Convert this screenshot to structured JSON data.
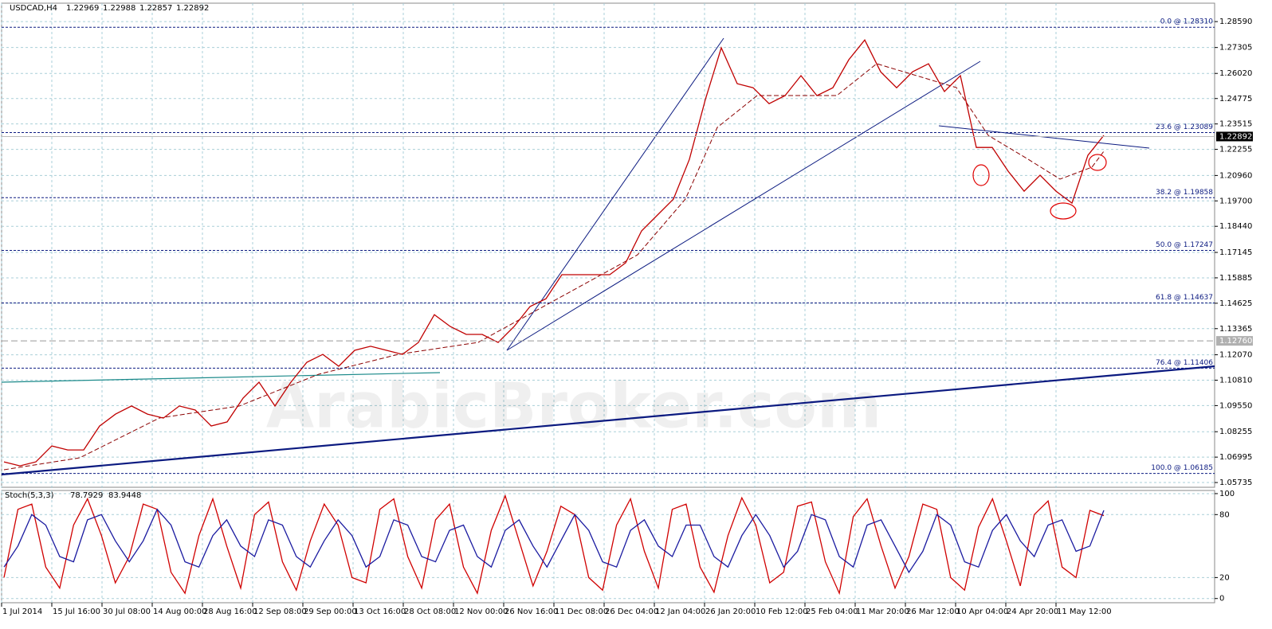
{
  "chart_data": [
    {
      "type": "line",
      "title": "USDCAD,H4",
      "quote": [
        1.22969,
        1.22988,
        1.22857,
        1.22892
      ],
      "watermark": "ArabicBroker.com",
      "color": "#c00000",
      "values": [
        1.0676,
        1.0656,
        1.0676,
        1.0755,
        1.0735,
        1.0735,
        1.0854,
        1.0913,
        1.0953,
        1.0913,
        1.0893,
        1.0953,
        1.0933,
        1.0854,
        1.0874,
        1.0992,
        1.1071,
        1.0953,
        1.1071,
        1.117,
        1.1209,
        1.115,
        1.1229,
        1.1249,
        1.1229,
        1.1209,
        1.1268,
        1.1406,
        1.1347,
        1.1308,
        1.1308,
        1.1268,
        1.1347,
        1.1446,
        1.1485,
        1.1604,
        1.1604,
        1.1604,
        1.1604,
        1.1663,
        1.1821,
        1.19,
        1.1979,
        1.2176,
        1.2472,
        1.2729,
        1.2551,
        1.2531,
        1.2452,
        1.2492,
        1.2591,
        1.2492,
        1.2531,
        1.267,
        1.2768,
        1.261,
        1.2531,
        1.261,
        1.265,
        1.2512,
        1.2591,
        1.2235,
        1.2235,
        1.2117,
        1.2018,
        1.2097,
        1.2018,
        1.1959,
        1.2196,
        1.2295
      ],
      "date_labels": [
        "1 Jul 2014",
        "15 Jul 16:00",
        "30 Jul 08:00",
        "14 Aug 00:00",
        "28 Aug 16:00",
        "12 Sep 08:00",
        "29 Sep 00:00",
        "13 Oct 16:00",
        "28 Oct 08:00",
        "12 Nov 00:00",
        "26 Nov 16:00",
        "11 Dec 08:00",
        "26 Dec 04:00",
        "12 Jan 04:00",
        "26 Jan 20:00",
        "10 Feb 12:00",
        "25 Feb 04:00",
        "11 Mar 20:00",
        "26 Mar 12:00",
        "10 Apr 04:00",
        "24 Apr 20:00",
        "11 May 12:00"
      ],
      "ylim": [
        1.055,
        1.2895
      ],
      "yticks": [
        {
          "value": 1.2859,
          "label": "1.28590"
        },
        1.27305,
        {
          "value": 1.2602,
          "label": "1.26020"
        },
        1.24775,
        1.23515,
        1.22255,
        {
          "value": 1.2096,
          "label": "1.20960"
        },
        {
          "value": 1.197,
          "label": "1.19700"
        },
        {
          "value": 1.1844,
          "label": "1.18440"
        },
        1.17145,
        1.15885,
        1.14625,
        1.13365,
        {
          "value": 1.1207,
          "label": "1.12070"
        },
        {
          "value": 1.1081,
          "label": "1.10810"
        },
        {
          "value": 1.0955,
          "label": "1.09550"
        },
        1.08255,
        1.06995,
        1.05735
      ],
      "grid": true,
      "last_price": 1.22892,
      "marker_price": {
        "value": 1.1276,
        "label": "1.12760"
      },
      "fib_levels": [
        {
          "value": 1.2831,
          "label": "0.0 @ 1.28310"
        },
        {
          "value": 1.23089,
          "label": "23.6 @ 1.23089"
        },
        {
          "value": 1.19858,
          "label": "38.2 @ 1.19858"
        },
        {
          "value": 1.17247,
          "label": "50.0 @ 1.17247"
        },
        {
          "value": 1.14637,
          "label": "61.8 @ 1.14637"
        },
        {
          "value": 1.11406,
          "label": "76.4 @ 1.11406"
        },
        {
          "value": 1.06185,
          "label": "100.0 @ 1.06185"
        }
      ]
    },
    {
      "type": "line",
      "title": "Stoch(5,3,3)",
      "readings": [
        78.7929,
        83.9448
      ],
      "series": [
        {
          "color": "#d00000",
          "values": [
            20,
            85,
            90,
            30,
            10,
            70,
            95,
            60,
            15,
            40,
            90,
            85,
            25,
            5,
            60,
            95,
            50,
            10,
            80,
            92,
            35,
            8,
            55,
            90,
            70,
            20,
            15,
            85,
            95,
            40,
            10,
            75,
            90,
            30,
            5,
            65,
            98,
            55,
            12,
            45,
            88,
            80,
            20,
            8,
            70,
            95,
            45,
            10,
            85,
            90,
            30,
            6,
            60,
            96,
            70,
            15,
            25,
            88,
            92,
            35,
            5,
            78,
            95,
            50,
            10,
            40,
            90,
            85,
            20,
            8,
            68,
            95,
            55,
            12,
            80,
            93,
            30,
            20,
            84,
            79
          ]
        },
        {
          "color": "#1a1aa0",
          "values": [
            30,
            50,
            80,
            70,
            40,
            35,
            75,
            80,
            55,
            35,
            55,
            85,
            70,
            35,
            30,
            60,
            75,
            50,
            40,
            75,
            70,
            40,
            30,
            55,
            75,
            60,
            30,
            40,
            75,
            70,
            40,
            35,
            65,
            70,
            40,
            30,
            65,
            75,
            50,
            30,
            55,
            80,
            65,
            35,
            30,
            65,
            75,
            50,
            40,
            70,
            70,
            40,
            30,
            60,
            80,
            60,
            30,
            45,
            80,
            75,
            40,
            30,
            70,
            75,
            50,
            25,
            45,
            80,
            70,
            35,
            30,
            65,
            80,
            55,
            40,
            70,
            75,
            45,
            50,
            84
          ]
        }
      ],
      "ylim": [
        -4,
        103
      ],
      "yticks": [
        0,
        20,
        80,
        100
      ],
      "grid": true
    }
  ]
}
